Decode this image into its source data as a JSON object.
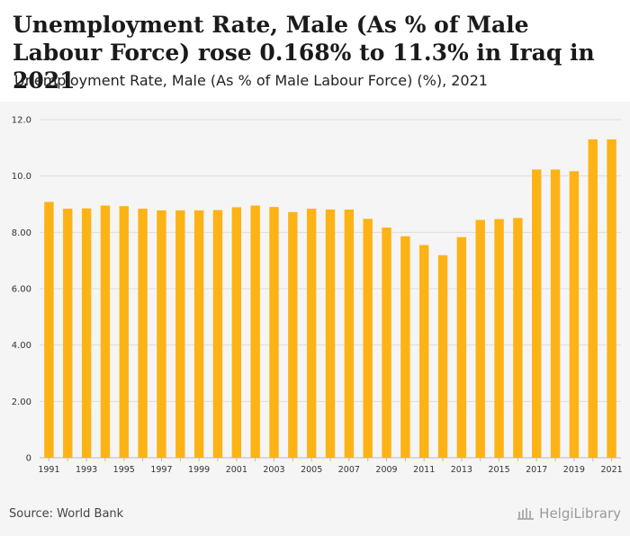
{
  "header": {
    "title": "Unemployment Rate, Male (As % of Male Labour Force) rose 0.168% to 11.3% in Iraq in 2021",
    "subtitle": "Unemployment Rate, Male (As % of Male Labour Force) (%), 2021"
  },
  "footer": {
    "source": "Source: World Bank",
    "brand": "HelgiLibrary"
  },
  "colors": {
    "bar": "#FDB316",
    "grid": "#dddddd",
    "plot_bg": "#f5f5f5"
  },
  "chart_data": {
    "type": "bar",
    "title": "Unemployment Rate, Male (As % of Male Labour Force) rose 0.168% to 11.3% in Iraq in 2021",
    "subtitle": "Unemployment Rate, Male (As % of Male Labour Force) (%), 2021",
    "xlabel": "",
    "ylabel": "",
    "ylim": [
      0,
      12
    ],
    "yticks": [
      "0",
      "2.00",
      "4.00",
      "6.00",
      "8.00",
      "10.0",
      "12.0"
    ],
    "grid": true,
    "categories": [
      "1991",
      "1992",
      "1993",
      "1994",
      "1995",
      "1996",
      "1997",
      "1998",
      "1999",
      "2000",
      "2001",
      "2002",
      "2003",
      "2004",
      "2005",
      "2006",
      "2007",
      "2008",
      "2009",
      "2010",
      "2011",
      "2012",
      "2013",
      "2014",
      "2015",
      "2016",
      "2017",
      "2018",
      "2019",
      "2020",
      "2021"
    ],
    "xtick_labels": [
      "1991",
      "",
      "1993",
      "",
      "1995",
      "",
      "1997",
      "",
      "1999",
      "",
      "2001",
      "",
      "2003",
      "",
      "2005",
      "",
      "2007",
      "",
      "2009",
      "",
      "2011",
      "",
      "2013",
      "",
      "2015",
      "",
      "2017",
      "",
      "2019",
      "",
      "2021"
    ],
    "values": [
      9.08,
      8.84,
      8.85,
      8.95,
      8.93,
      8.84,
      8.78,
      8.78,
      8.78,
      8.79,
      8.89,
      8.95,
      8.9,
      8.72,
      8.84,
      8.81,
      8.81,
      8.48,
      8.17,
      7.86,
      7.55,
      7.19,
      7.83,
      8.44,
      8.47,
      8.51,
      10.23,
      10.23,
      10.17,
      11.3,
      11.3
    ]
  }
}
